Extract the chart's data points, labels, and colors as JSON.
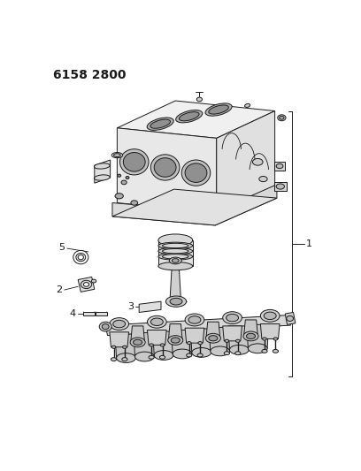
{
  "title_code": "6158 2800",
  "label_1": "1",
  "label_2": "2",
  "label_3": "3",
  "label_4": "4",
  "label_5": "5",
  "bg_color": "#ffffff",
  "line_color": "#1a1a1a",
  "title_fontsize": 10,
  "label_fontsize": 8,
  "fig_width": 4.08,
  "fig_height": 5.33,
  "dpi": 100
}
